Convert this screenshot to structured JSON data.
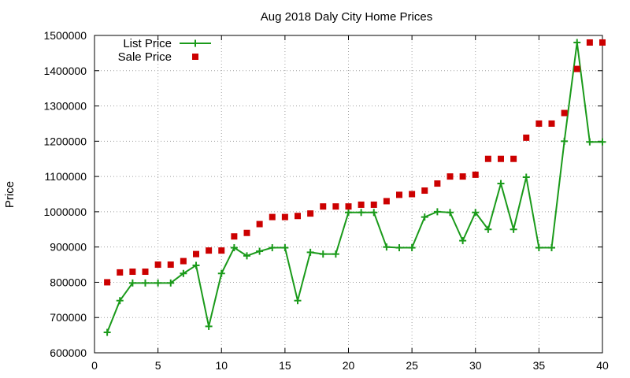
{
  "chart_data": {
    "type": "line",
    "title": "Aug 2018 Daly City Home Prices",
    "xlabel": "",
    "ylabel": "Price",
    "xlim": [
      0,
      40
    ],
    "ylim": [
      600000,
      1500000
    ],
    "xticks": [
      0,
      5,
      10,
      15,
      20,
      25,
      30,
      35,
      40
    ],
    "yticks": [
      600000,
      700000,
      800000,
      900000,
      1000000,
      1100000,
      1200000,
      1300000,
      1400000,
      1500000
    ],
    "grid": true,
    "legend_position": "top-left",
    "x": [
      1,
      2,
      3,
      4,
      5,
      6,
      7,
      8,
      9,
      10,
      11,
      12,
      13,
      14,
      15,
      16,
      17,
      18,
      19,
      20,
      21,
      22,
      23,
      24,
      25,
      26,
      27,
      28,
      29,
      30,
      31,
      32,
      33,
      34,
      35,
      36,
      37,
      38,
      39,
      40
    ],
    "series": [
      {
        "name": "List Price",
        "style": "linespoints",
        "marker": "plus",
        "color": "#1a9a1a",
        "values": [
          658000,
          748000,
          798000,
          798000,
          798000,
          798000,
          825000,
          848000,
          675000,
          825000,
          898000,
          875000,
          888000,
          898000,
          898000,
          748000,
          885000,
          880000,
          880000,
          998000,
          998000,
          998000,
          900000,
          898000,
          898000,
          985000,
          1000000,
          998000,
          918000,
          998000,
          950000,
          1080000,
          950000,
          1098000,
          898000,
          898000,
          1200000,
          1480000,
          1198000,
          1198000
        ]
      },
      {
        "name": "Sale Price",
        "style": "points",
        "marker": "square",
        "color": "#cc0000",
        "values": [
          800000,
          828000,
          830000,
          830000,
          850000,
          850000,
          860000,
          880000,
          890000,
          890000,
          930000,
          940000,
          965000,
          985000,
          985000,
          988000,
          995000,
          1015000,
          1015000,
          1015000,
          1020000,
          1020000,
          1030000,
          1048000,
          1050000,
          1060000,
          1080000,
          1100000,
          1100000,
          1105000,
          1150000,
          1150000,
          1150000,
          1210000,
          1250000,
          1250000,
          1280000,
          1405000,
          1480000,
          1480000
        ]
      }
    ]
  }
}
